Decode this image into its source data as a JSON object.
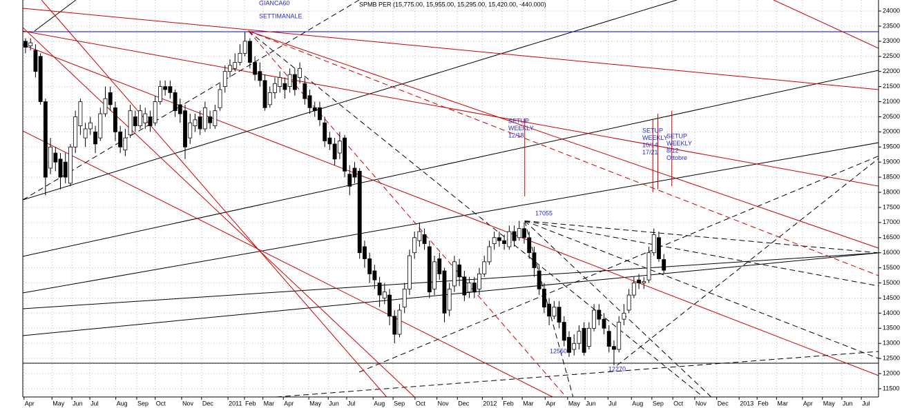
{
  "chart_data": {
    "type": "candlestick",
    "title": "SPMB PER (15,775.00, 15,955.00, 15,295.00, 15,420.00, -440.000)",
    "annotations": [
      [
        "GIANCA60"
      ],
      [
        "SETTIMANALE"
      ],
      [
        "SETUP",
        "WEEKLY",
        "12/18"
      ],
      [
        "SETUP",
        "WEEKLY",
        "10/14",
        "17/21"
      ],
      [
        "SETUP",
        "WEEKLY",
        "8/12",
        "Ottobre"
      ],
      [
        "17055"
      ],
      [
        "12550"
      ],
      [
        "12270"
      ]
    ],
    "open": [
      23000,
      22850,
      22700,
      22500,
      21000,
      18800,
      19300,
      19100,
      19000,
      18300,
      19500,
      20200,
      19800,
      20100,
      20000,
      19800,
      20600,
      21300,
      20800,
      20000,
      19400,
      19900,
      20500,
      20200,
      20300,
      20500,
      20300,
      21000,
      21500,
      21500,
      21300,
      20900,
      20700,
      19800,
      20200,
      20500,
      20100,
      20500,
      20200,
      20800,
      21500,
      22000,
      22100,
      22300,
      22600,
      23000,
      22300,
      22000,
      21700,
      20900,
      21300,
      21500,
      21600,
      21500,
      21900,
      21800,
      21600,
      21200,
      20800,
      20800,
      20300,
      19800,
      19600,
      19300,
      19800,
      18600,
      18800,
      18700,
      16200,
      15800,
      15400,
      15000,
      14500,
      14600,
      13900,
      13300,
      14200,
      14800,
      16000,
      16400,
      16600,
      16200,
      14800,
      15800,
      15400,
      14100,
      14900,
      15600,
      15200,
      14700,
      15000,
      14800,
      15300,
      15700,
      16300,
      16500,
      16400,
      16200,
      16700,
      16500,
      16800,
      16500,
      16000,
      15400,
      14800,
      14300,
      13900,
      14200,
      13700,
      13200,
      12800,
      13000,
      13500,
      12900,
      13500,
      14100,
      13800,
      13400,
      12900,
      12800,
      13800,
      14100,
      14600,
      15100,
      15000,
      15100,
      16000,
      16500,
      15775
    ],
    "high": [
      23100,
      23100,
      22900,
      22600,
      21100,
      19800,
      19500,
      19300,
      19300,
      19600,
      20700,
      21100,
      20300,
      20500,
      20200,
      20800,
      21500,
      21500,
      21000,
      20200,
      20100,
      20900,
      20700,
      20900,
      20800,
      20700,
      21200,
      21700,
      21700,
      21700,
      21400,
      21100,
      20900,
      20600,
      20600,
      20700,
      21000,
      20700,
      20900,
      21600,
      22200,
      22400,
      22600,
      22900,
      23300,
      23100,
      22500,
      22300,
      21900,
      21500,
      21800,
      22000,
      21800,
      22100,
      22100,
      22300,
      21800,
      21400,
      21000,
      21000,
      20500,
      20000,
      19800,
      20000,
      19900,
      18900,
      19000,
      18800,
      16400,
      16000,
      15600,
      15200,
      15000,
      14800,
      14100,
      14300,
      15000,
      16100,
      16700,
      17000,
      16800,
      16400,
      15900,
      16000,
      15500,
      15000,
      15900,
      15800,
      15400,
      15200,
      15200,
      15500,
      15900,
      16400,
      16700,
      16700,
      16600,
      16900,
      16900,
      17055,
      17000,
      16700,
      16200,
      15600,
      15000,
      14500,
      14400,
      14400,
      13900,
      13400,
      13300,
      13600,
      13700,
      13700,
      14300,
      14300,
      14000,
      13600,
      13100,
      13900,
      14300,
      14800,
      15200,
      15300,
      15200,
      16200,
      16800,
      16700,
      15955
    ],
    "low": [
      22600,
      22700,
      21800,
      20900,
      17900,
      18600,
      18700,
      18100,
      18300,
      18200,
      19300,
      19900,
      19500,
      19900,
      19300,
      19700,
      20500,
      20700,
      19700,
      19300,
      19200,
      19800,
      20000,
      20100,
      20100,
      20000,
      20200,
      20900,
      21200,
      21100,
      20500,
      20300,
      19100,
      19600,
      20000,
      19900,
      20000,
      20100,
      20100,
      20700,
      21300,
      21800,
      22000,
      22200,
      22500,
      22100,
      21700,
      21500,
      20700,
      20800,
      21100,
      21300,
      21100,
      21300,
      21200,
      21600,
      20900,
      20600,
      20500,
      20200,
      19500,
      19400,
      18900,
      19100,
      18500,
      17900,
      18300,
      15800,
      15500,
      15000,
      14800,
      14200,
      14300,
      13600,
      13000,
      13200,
      14000,
      14600,
      15800,
      16200,
      16100,
      14500,
      14600,
      15100,
      13700,
      13900,
      14700,
      14900,
      14400,
      14500,
      14500,
      14600,
      15200,
      15600,
      16100,
      16200,
      16100,
      16100,
      16200,
      16400,
      16300,
      15800,
      15200,
      14600,
      14000,
      13600,
      13800,
      13500,
      12900,
      12550,
      12600,
      12800,
      12600,
      12800,
      13400,
      13600,
      13300,
      12700,
      12270,
      12700,
      13600,
      14000,
      14500,
      14800,
      14800,
      15000,
      15900,
      15700,
      15295
    ],
    "close": [
      22800,
      22950,
      22000,
      21000,
      18500,
      19500,
      19000,
      18500,
      18500,
      19500,
      20500,
      21000,
      20100,
      20300,
      19600,
      20600,
      21100,
      20900,
      20000,
      19500,
      19800,
      20700,
      20200,
      20700,
      20600,
      20200,
      21000,
      21500,
      21400,
      21300,
      20700,
      20600,
      19500,
      20300,
      20400,
      20100,
      20800,
      20300,
      20700,
      21400,
      22000,
      22200,
      22300,
      22600,
      23000,
      22300,
      21900,
      21700,
      20800,
      21300,
      21600,
      21800,
      21400,
      21900,
      21400,
      22100,
      21100,
      20800,
      20700,
      20400,
      19700,
      19600,
      19100,
      19700,
      18700,
      18200,
      18500,
      16000,
      15800,
      15300,
      15100,
      14600,
      14700,
      13900,
      13300,
      14100,
      14800,
      15900,
      16500,
      16700,
      16300,
      14700,
      15700,
      15300,
      14000,
      14800,
      15700,
      15200,
      14600,
      15000,
      14700,
      15300,
      15700,
      16200,
      16500,
      16400,
      16300,
      16700,
      16400,
      16800,
      16500,
      16000,
      15500,
      14800,
      14200,
      13900,
      14200,
      13700,
      13100,
      12700,
      13000,
      13400,
      12700,
      13500,
      14100,
      13800,
      13500,
      12900,
      12800,
      13700,
      14000,
      14600,
      15000,
      15000,
      15050,
      16000,
      16600,
      15800,
      15420
    ],
    "up_color": "#ffffff",
    "down_color": "#000000",
    "lines": [
      {
        "x": [
          -0.55,
          171.05
        ],
        "y": [
          15880,
          22038
        ],
        "color": "#000000",
        "dash": false
      },
      {
        "x": [
          -0.55,
          171.05
        ],
        "y": [
          14671,
          19643
        ],
        "color": "#000000",
        "dash": false
      },
      {
        "x": [
          -0.55,
          171.05
        ],
        "y": [
          14146,
          15996
        ],
        "color": "#000000",
        "dash": false
      },
      {
        "x": [
          -0.55,
          171.05
        ],
        "y": [
          13257,
          15996
        ],
        "color": "#000000",
        "dash": false
      },
      {
        "x": [
          -0.55,
          130.6
        ],
        "y": [
          17750,
          24365
        ],
        "color": "#000000",
        "dash": false
      },
      {
        "x": [
          1.8,
          10.1
        ],
        "y": [
          23339,
          24365
        ],
        "color": "#000000",
        "dash": false
      },
      {
        "x": [
          -0.55,
          171.05
        ],
        "y": [
          12344,
          12344
        ],
        "color": "#000000",
        "dash": false
      },
      {
        "x": [
          -0.55,
          171.05
        ],
        "y": [
          23316,
          23316
        ],
        "color": "#0000cc",
        "dash": false
      },
      {
        "x": [
          -0.55,
          66.9
        ],
        "y": [
          17750,
          24365
        ],
        "color": "#000000",
        "dash": true
      },
      {
        "x": [
          44.7,
          135.9
        ],
        "y": [
          23339,
          11226
        ],
        "color": "#000000",
        "dash": true
      },
      {
        "x": [
          100.1,
          171.05
        ],
        "y": [
          17055,
          15996
        ],
        "color": "#000000",
        "dash": true
      },
      {
        "x": [
          100.1,
          171.05
        ],
        "y": [
          17055,
          14900
        ],
        "color": "#000000",
        "dash": true
      },
      {
        "x": [
          100.1,
          171.05
        ],
        "y": [
          17055,
          12500
        ],
        "color": "#000000",
        "dash": true
      },
      {
        "x": [
          100.1,
          137.5
        ],
        "y": [
          17055,
          11226
        ],
        "color": "#000000",
        "dash": true
      },
      {
        "x": [
          100.1,
          109.8
        ],
        "y": [
          17055,
          11226
        ],
        "color": "#000000",
        "dash": true
      },
      {
        "x": [
          118.6,
          171.05
        ],
        "y": [
          12270,
          19119
        ],
        "color": "#000000",
        "dash": true
      },
      {
        "x": [
          50.3,
          171.05
        ],
        "y": [
          11226,
          12732
        ],
        "color": "#000000",
        "dash": true
      },
      {
        "x": [
          66.9,
          171.05
        ],
        "y": [
          12048,
          19200
        ],
        "color": "#000000",
        "dash": true
      },
      {
        "x": [
          -0.55,
          171.05
        ],
        "y": [
          24091,
          21400
        ],
        "color": "#cc0000",
        "dash": false
      },
      {
        "x": [
          -0.55,
          171.05
        ],
        "y": [
          23339,
          18206
        ],
        "color": "#cc0000",
        "dash": false
      },
      {
        "x": [
          44.7,
          171.05
        ],
        "y": [
          23339,
          16153
        ],
        "color": "#cc0000",
        "dash": false
      },
      {
        "x": [
          -0.55,
          171.05
        ],
        "y": [
          22882,
          11934
        ],
        "color": "#cc0000",
        "dash": false
      },
      {
        "x": [
          -0.55,
          78.0
        ],
        "y": [
          23453,
          11226
        ],
        "color": "#cc0000",
        "dash": false
      },
      {
        "x": [
          -0.55,
          105.7
        ],
        "y": [
          20031,
          11226
        ],
        "color": "#cc0000",
        "dash": false
      },
      {
        "x": [
          3.2,
          72.4
        ],
        "y": [
          24365,
          11226
        ],
        "color": "#cc0000",
        "dash": false
      },
      {
        "x": [
          150,
          171.05
        ],
        "y": [
          24365,
          22768
        ],
        "color": "#cc0000",
        "dash": false
      },
      {
        "x": [
          44.7,
          171.05
        ],
        "y": [
          23339,
          15241
        ],
        "color": "#cc0000",
        "dash": true
      },
      {
        "x": [
          44.7,
          108.4
        ],
        "y": [
          23339,
          11226
        ],
        "color": "#cc0000",
        "dash": true
      },
      {
        "x": [
          100.1,
          100.1
        ],
        "y": [
          20442,
          17864
        ],
        "color": "#cc0000",
        "dash": false
      },
      {
        "x": [
          125.8,
          125.8
        ],
        "y": [
          20400,
          18000
        ],
        "color": "#cc0000",
        "dash": false
      },
      {
        "x": [
          126.8,
          126.8
        ],
        "y": [
          20600,
          18100
        ],
        "color": "#cc0000",
        "dash": false
      },
      {
        "x": [
          129.6,
          129.6
        ],
        "y": [
          20700,
          18200
        ],
        "color": "#cc0000",
        "dash": false
      }
    ],
    "xlim": [
      -0.55,
      171.05
    ],
    "xticks": [
      {
        "value": -0.3,
        "label": "Apr"
      },
      {
        "value": 5.3,
        "label": "May"
      },
      {
        "value": 9.3,
        "label": "Jun"
      },
      {
        "value": 12.9,
        "label": "Jul"
      },
      {
        "value": 18.1,
        "label": "Aug"
      },
      {
        "value": 22.3,
        "label": "Sep"
      },
      {
        "value": 26.0,
        "label": "Oct"
      },
      {
        "value": 31.3,
        "label": "Nov"
      },
      {
        "value": 35.3,
        "label": "Dec"
      },
      {
        "value": 40.6,
        "label": "2011"
      },
      {
        "value": 43.9,
        "label": "Feb"
      },
      {
        "value": 47.6,
        "label": "Mar"
      },
      {
        "value": 51.7,
        "label": "Apr"
      },
      {
        "value": 56.8,
        "label": "May"
      },
      {
        "value": 60.7,
        "label": "Jun"
      },
      {
        "value": 64.4,
        "label": "Jul"
      },
      {
        "value": 69.7,
        "label": "Aug"
      },
      {
        "value": 73.7,
        "label": "Sep"
      },
      {
        "value": 78.1,
        "label": "Oct"
      },
      {
        "value": 82.5,
        "label": "Nov"
      },
      {
        "value": 86.6,
        "label": "Dec"
      },
      {
        "value": 91.6,
        "label": "2012"
      },
      {
        "value": 95.6,
        "label": "Feb"
      },
      {
        "value": 99.6,
        "label": "Mar"
      },
      {
        "value": 104.2,
        "label": "Apr"
      },
      {
        "value": 108.7,
        "label": "May"
      },
      {
        "value": 112.2,
        "label": "Jun"
      },
      {
        "value": 116.8,
        "label": "Jul"
      },
      {
        "value": 121.5,
        "label": "Aug"
      },
      {
        "value": 125.6,
        "label": "Sep"
      },
      {
        "value": 129.8,
        "label": "Oct"
      },
      {
        "value": 134.2,
        "label": "Nov"
      },
      {
        "value": 138.6,
        "label": "Dec"
      },
      {
        "value": 143.1,
        "label": "2013"
      },
      {
        "value": 146.7,
        "label": "Feb"
      },
      {
        "value": 150.6,
        "label": "Mar"
      },
      {
        "value": 155.8,
        "label": "Apr"
      },
      {
        "value": 159.8,
        "label": "May"
      },
      {
        "value": 163.7,
        "label": "Jun"
      },
      {
        "value": 167.6,
        "label": "Jul"
      }
    ],
    "ylim": [
      11226,
      24365
    ],
    "yticks": [
      11500,
      12000,
      12500,
      13000,
      13500,
      14000,
      14500,
      15000,
      15500,
      16000,
      16500,
      17000,
      17500,
      18000,
      18500,
      19000,
      19500,
      20000,
      20500,
      21000,
      21500,
      22000,
      22500,
      23000,
      23500,
      24000
    ],
    "grid": true
  }
}
